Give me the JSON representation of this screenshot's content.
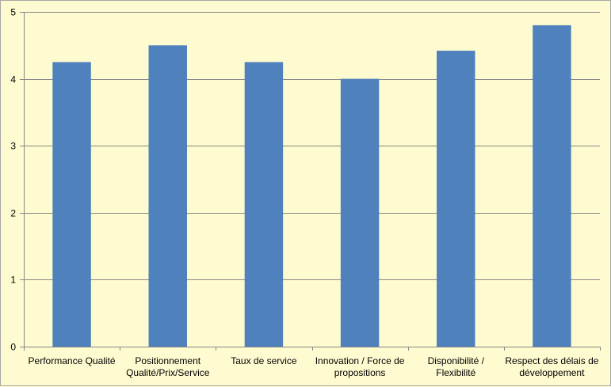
{
  "chart_data": {
    "type": "bar",
    "title": "",
    "xlabel": "",
    "ylabel": "",
    "categories": [
      [
        "Performance Qualité"
      ],
      [
        "Positionnement",
        "Qualité/Prix/Service"
      ],
      [
        "Taux de service"
      ],
      [
        "Innovation / Force de",
        "propositions"
      ],
      [
        "Disponibilité /",
        "Flexibilité"
      ],
      [
        "Respect des délais de",
        "développement"
      ]
    ],
    "values": [
      4.25,
      4.5,
      4.25,
      4.0,
      4.42,
      4.8
    ],
    "ylim": [
      0,
      5
    ],
    "yticks": [
      "0",
      "1",
      "2",
      "3",
      "4",
      "5"
    ],
    "grid": true,
    "legend": "none",
    "colors": {
      "bar": "#4f81bd",
      "background": "#fffbd0",
      "grid": "#868686",
      "axis": "#868686"
    }
  }
}
